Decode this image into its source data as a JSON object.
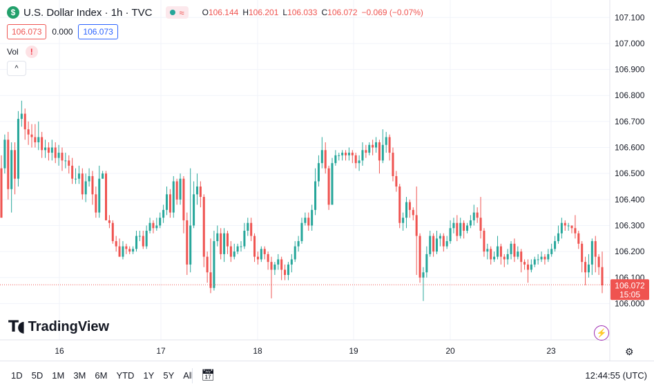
{
  "legend": {
    "symbol_badge": "$",
    "title": "U.S. Dollar Index · 1h · TVC",
    "indicator_wave": "≈",
    "ohlc": [
      {
        "key": "O",
        "value": "106.144"
      },
      {
        "key": "H",
        "value": "106.201"
      },
      {
        "key": "L",
        "value": "106.033"
      },
      {
        "key": "C",
        "value": "106.072"
      }
    ],
    "change": "−0.069 (−0.07%)",
    "bid": "106.073",
    "spread": "0.000",
    "ask": "106.073",
    "vol_label": "Vol",
    "vol_warning": "!",
    "collapse_icon": "^"
  },
  "logo_text": "TradingView",
  "price_tag": {
    "price": "106.072",
    "countdown": "15:05"
  },
  "bottom_bar": {
    "ranges": [
      "1D",
      "5D",
      "1M",
      "3M",
      "6M",
      "YTD",
      "1Y",
      "5Y",
      "All"
    ],
    "clock": "12:44:55 (UTC)"
  },
  "colors": {
    "up": "#26a69a",
    "down": "#ef5350",
    "grid": "#f0f3fa",
    "text": "#131722"
  },
  "chart_data": {
    "type": "candlestick",
    "ylim": [
      105.94,
      107.13
    ],
    "y_ticks": [
      "107.100",
      "107.000",
      "106.900",
      "106.800",
      "106.700",
      "106.600",
      "106.500",
      "106.400",
      "106.300",
      "106.200",
      "106.100",
      "106.000"
    ],
    "x_ticks": [
      "16",
      "17",
      "18",
      "19",
      "20",
      "23"
    ],
    "last_price": 106.072,
    "candles": [
      [
        106.52,
        106.33,
        106.57,
        106.33
      ],
      [
        106.52,
        106.63,
        106.65,
        106.5
      ],
      [
        106.63,
        106.44,
        106.66,
        106.4
      ],
      [
        106.44,
        106.59,
        106.62,
        106.35
      ],
      [
        106.59,
        106.48,
        106.62,
        106.42
      ],
      [
        106.48,
        106.71,
        106.74,
        106.45
      ],
      [
        106.71,
        106.73,
        106.78,
        106.68
      ],
      [
        106.73,
        106.67,
        106.75,
        106.63
      ],
      [
        106.67,
        106.65,
        106.7,
        106.61
      ],
      [
        106.65,
        106.64,
        106.69,
        106.6
      ],
      [
        106.64,
        106.62,
        106.69,
        106.6
      ],
      [
        106.62,
        106.64,
        106.7,
        106.59
      ],
      [
        106.64,
        106.59,
        106.66,
        106.56
      ],
      [
        106.59,
        106.6,
        106.63,
        106.56
      ],
      [
        106.6,
        106.58,
        106.62,
        106.55
      ],
      [
        106.58,
        106.6,
        106.63,
        106.55
      ],
      [
        106.6,
        106.56,
        106.62,
        106.54
      ],
      [
        106.56,
        106.58,
        106.61,
        106.53
      ],
      [
        106.58,
        106.55,
        106.6,
        106.51
      ],
      [
        106.55,
        106.55,
        106.58,
        106.52
      ],
      [
        106.55,
        106.53,
        106.57,
        106.5
      ],
      [
        106.53,
        106.48,
        106.56,
        106.46
      ],
      [
        106.48,
        106.48,
        106.52,
        106.46
      ],
      [
        106.48,
        106.5,
        106.53,
        106.46
      ],
      [
        106.5,
        106.42,
        106.52,
        106.4
      ],
      [
        106.42,
        106.47,
        106.5,
        106.39
      ],
      [
        106.47,
        106.49,
        106.52,
        106.45
      ],
      [
        106.49,
        106.42,
        106.51,
        106.38
      ],
      [
        106.42,
        106.35,
        106.45,
        106.33
      ],
      [
        106.35,
        106.48,
        106.53,
        106.33
      ],
      [
        106.48,
        106.5,
        106.51,
        106.48
      ],
      [
        106.5,
        106.32,
        106.51,
        106.32
      ],
      [
        106.32,
        106.31,
        106.34,
        106.29
      ],
      [
        106.31,
        106.24,
        106.32,
        106.23
      ],
      [
        106.24,
        106.22,
        106.26,
        106.2
      ],
      [
        106.22,
        106.18,
        106.25,
        106.18
      ],
      [
        106.18,
        106.22,
        106.24,
        106.17
      ],
      [
        106.22,
        106.21,
        106.23,
        106.19
      ],
      [
        106.21,
        106.2,
        106.22,
        106.19
      ],
      [
        106.2,
        106.21,
        106.22,
        106.19
      ],
      [
        106.21,
        106.26,
        106.28,
        106.2
      ],
      [
        106.26,
        106.26,
        106.28,
        106.24
      ],
      [
        106.26,
        106.22,
        106.28,
        106.21
      ],
      [
        106.22,
        106.28,
        106.3,
        106.21
      ],
      [
        106.28,
        106.31,
        106.33,
        106.27
      ],
      [
        106.31,
        106.29,
        106.32,
        106.27
      ],
      [
        106.29,
        106.3,
        106.33,
        106.28
      ],
      [
        106.3,
        106.33,
        106.35,
        106.29
      ],
      [
        106.33,
        106.36,
        106.38,
        106.31
      ],
      [
        106.36,
        106.42,
        106.45,
        106.34
      ],
      [
        106.42,
        106.35,
        106.44,
        106.33
      ],
      [
        106.35,
        106.47,
        106.49,
        106.33
      ],
      [
        106.47,
        106.4,
        106.48,
        106.38
      ],
      [
        106.4,
        106.48,
        106.5,
        106.38
      ],
      [
        106.48,
        106.32,
        106.49,
        106.27
      ],
      [
        106.32,
        106.15,
        106.35,
        106.11
      ],
      [
        106.15,
        106.3,
        106.52,
        106.12
      ],
      [
        106.3,
        106.42,
        106.47,
        106.29
      ],
      [
        106.42,
        106.45,
        106.5,
        106.38
      ],
      [
        106.45,
        106.41,
        106.47,
        106.37
      ],
      [
        106.41,
        106.18,
        106.42,
        106.14
      ],
      [
        106.18,
        106.12,
        106.2,
        106.08
      ],
      [
        106.12,
        106.06,
        106.25,
        106.04
      ],
      [
        106.06,
        106.24,
        106.28,
        106.05
      ],
      [
        106.24,
        106.27,
        106.3,
        106.22
      ],
      [
        106.27,
        106.19,
        106.29,
        106.17
      ],
      [
        106.19,
        106.27,
        106.29,
        106.16
      ],
      [
        106.27,
        106.22,
        106.28,
        106.19
      ],
      [
        106.22,
        106.18,
        106.24,
        106.16
      ],
      [
        106.18,
        106.2,
        106.23,
        106.17
      ],
      [
        106.2,
        106.22,
        106.23,
        106.19
      ],
      [
        106.22,
        106.22,
        106.24,
        106.2
      ],
      [
        106.22,
        106.28,
        106.31,
        106.21
      ],
      [
        106.28,
        106.31,
        106.33,
        106.26
      ],
      [
        106.31,
        106.26,
        106.33,
        106.24
      ],
      [
        106.26,
        106.18,
        106.27,
        106.16
      ],
      [
        106.18,
        106.17,
        106.2,
        106.15
      ],
      [
        106.17,
        106.21,
        106.22,
        106.16
      ],
      [
        106.21,
        106.19,
        106.22,
        106.17
      ],
      [
        106.19,
        106.16,
        106.2,
        106.13
      ],
      [
        106.16,
        106.13,
        106.18,
        106.02
      ],
      [
        106.13,
        106.15,
        106.16,
        106.11
      ],
      [
        106.15,
        106.17,
        106.19,
        106.13
      ],
      [
        106.17,
        106.13,
        106.18,
        106.09
      ],
      [
        106.13,
        106.11,
        106.15,
        106.09
      ],
      [
        106.11,
        106.15,
        106.16,
        106.09
      ],
      [
        106.15,
        106.17,
        106.19,
        106.12
      ],
      [
        106.17,
        106.22,
        106.24,
        106.16
      ],
      [
        106.22,
        106.24,
        106.26,
        106.2
      ],
      [
        106.24,
        106.31,
        106.33,
        106.23
      ],
      [
        106.31,
        106.33,
        106.35,
        106.3
      ],
      [
        106.33,
        106.3,
        106.35,
        106.28
      ],
      [
        106.3,
        106.36,
        106.38,
        106.28
      ],
      [
        106.36,
        106.47,
        106.52,
        106.34
      ],
      [
        106.47,
        106.54,
        106.57,
        106.45
      ],
      [
        106.54,
        106.59,
        106.64,
        106.52
      ],
      [
        106.59,
        106.52,
        106.62,
        106.5
      ],
      [
        106.52,
        106.38,
        106.53,
        106.36
      ],
      [
        106.38,
        106.54,
        106.56,
        106.38
      ],
      [
        106.54,
        106.57,
        106.59,
        106.53
      ],
      [
        106.57,
        106.57,
        106.58,
        106.55
      ],
      [
        106.57,
        106.58,
        106.59,
        106.55
      ],
      [
        106.58,
        106.57,
        106.59,
        106.55
      ],
      [
        106.57,
        106.58,
        106.6,
        106.55
      ],
      [
        106.58,
        106.57,
        106.59,
        106.54
      ],
      [
        106.57,
        106.54,
        106.58,
        106.52
      ],
      [
        106.54,
        106.55,
        106.57,
        106.51
      ],
      [
        106.55,
        106.59,
        106.62,
        106.53
      ],
      [
        106.59,
        106.58,
        106.61,
        106.56
      ],
      [
        106.58,
        106.61,
        106.62,
        106.57
      ],
      [
        106.61,
        106.6,
        106.63,
        106.57
      ],
      [
        106.6,
        106.62,
        106.64,
        106.58
      ],
      [
        106.62,
        106.55,
        106.63,
        106.5
      ],
      [
        106.55,
        106.61,
        106.67,
        106.54
      ],
      [
        106.61,
        106.64,
        106.66,
        106.58
      ],
      [
        106.64,
        106.58,
        106.65,
        106.55
      ],
      [
        106.58,
        106.49,
        106.6,
        106.47
      ],
      [
        106.49,
        106.45,
        106.51,
        106.43
      ],
      [
        106.45,
        106.31,
        106.46,
        106.29
      ],
      [
        106.31,
        106.33,
        106.35,
        106.28
      ],
      [
        106.33,
        106.39,
        106.41,
        106.29
      ],
      [
        106.39,
        106.36,
        106.4,
        106.33
      ],
      [
        106.36,
        106.34,
        106.37,
        106.32
      ],
      [
        106.34,
        106.26,
        106.45,
        106.11
      ],
      [
        106.26,
        106.1,
        106.27,
        106.08
      ],
      [
        106.1,
        106.12,
        106.14,
        106.01
      ],
      [
        106.12,
        106.19,
        106.22,
        106.1
      ],
      [
        106.19,
        106.26,
        106.28,
        106.18
      ],
      [
        106.26,
        106.2,
        106.27,
        106.18
      ],
      [
        106.2,
        106.25,
        106.28,
        106.19
      ],
      [
        106.25,
        106.26,
        106.27,
        106.22
      ],
      [
        106.26,
        106.22,
        106.27,
        106.2
      ],
      [
        106.22,
        106.24,
        106.26,
        106.21
      ],
      [
        106.24,
        106.29,
        106.32,
        106.23
      ],
      [
        106.29,
        106.31,
        106.33,
        106.27
      ],
      [
        106.31,
        106.26,
        106.34,
        106.24
      ],
      [
        106.26,
        106.31,
        106.33,
        106.25
      ],
      [
        106.31,
        106.28,
        106.32,
        106.25
      ],
      [
        106.28,
        106.3,
        106.31,
        106.27
      ],
      [
        106.3,
        106.32,
        106.34,
        106.29
      ],
      [
        106.32,
        106.35,
        106.38,
        106.3
      ],
      [
        106.35,
        106.33,
        106.37,
        106.31
      ],
      [
        106.33,
        106.28,
        106.41,
        106.25
      ],
      [
        106.28,
        106.2,
        106.29,
        106.18
      ],
      [
        106.2,
        106.21,
        106.23,
        106.17
      ],
      [
        106.21,
        106.17,
        106.22,
        106.15
      ],
      [
        106.17,
        106.18,
        106.2,
        106.16
      ],
      [
        106.18,
        106.22,
        106.26,
        106.17
      ],
      [
        106.22,
        106.18,
        106.23,
        106.15
      ],
      [
        106.18,
        106.17,
        106.19,
        106.14
      ],
      [
        106.17,
        106.19,
        106.21,
        106.15
      ],
      [
        106.19,
        106.23,
        106.24,
        106.17
      ],
      [
        106.23,
        106.18,
        106.25,
        106.16
      ],
      [
        106.18,
        106.2,
        106.22,
        106.17
      ],
      [
        106.2,
        106.16,
        106.21,
        106.12
      ],
      [
        106.16,
        106.15,
        106.17,
        106.13
      ],
      [
        106.15,
        106.13,
        106.17,
        106.08
      ],
      [
        106.13,
        106.15,
        106.17,
        106.12
      ],
      [
        106.15,
        106.17,
        106.18,
        106.14
      ],
      [
        106.17,
        106.17,
        106.19,
        106.15
      ],
      [
        106.17,
        106.18,
        106.2,
        106.16
      ],
      [
        106.18,
        106.17,
        106.19,
        106.15
      ],
      [
        106.17,
        106.19,
        106.21,
        106.16
      ],
      [
        106.19,
        106.21,
        106.23,
        106.18
      ],
      [
        106.21,
        106.24,
        106.26,
        106.2
      ],
      [
        106.24,
        106.27,
        106.3,
        106.23
      ],
      [
        106.27,
        106.31,
        106.33,
        106.25
      ],
      [
        106.31,
        106.3,
        106.32,
        106.28
      ],
      [
        106.3,
        106.3,
        106.31,
        106.28
      ],
      [
        106.3,
        106.29,
        106.3,
        106.27
      ],
      [
        106.29,
        106.27,
        106.34,
        106.25
      ],
      [
        106.27,
        106.23,
        106.28,
        106.21
      ],
      [
        106.23,
        106.16,
        106.24,
        106.12
      ],
      [
        106.16,
        106.12,
        106.18,
        106.07
      ],
      [
        106.12,
        106.15,
        106.19,
        106.1
      ],
      [
        106.15,
        106.24,
        106.25,
        106.11
      ],
      [
        106.24,
        106.18,
        106.26,
        106.12
      ],
      [
        106.18,
        106.14,
        106.19,
        106.11
      ],
      [
        106.14,
        106.07,
        106.2,
        106.04
      ]
    ]
  }
}
